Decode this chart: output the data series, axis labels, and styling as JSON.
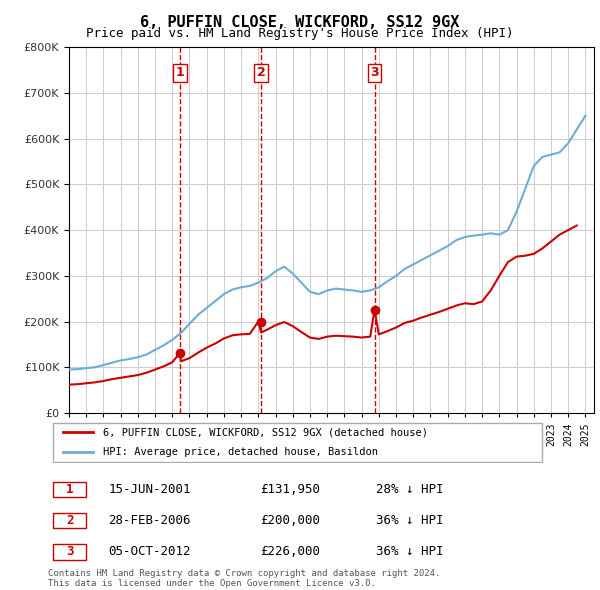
{
  "title": "6, PUFFIN CLOSE, WICKFORD, SS12 9GX",
  "subtitle": "Price paid vs. HM Land Registry's House Price Index (HPI)",
  "legend_red": "6, PUFFIN CLOSE, WICKFORD, SS12 9GX (detached house)",
  "legend_blue": "HPI: Average price, detached house, Basildon",
  "footer1": "Contains HM Land Registry data © Crown copyright and database right 2024.",
  "footer2": "This data is licensed under the Open Government Licence v3.0.",
  "transactions": [
    {
      "num": 1,
      "date": "15-JUN-2001",
      "price": "£131,950",
      "pct": "28% ↓ HPI",
      "year": 2001.46
    },
    {
      "num": 2,
      "date": "28-FEB-2006",
      "price": "£200,000",
      "pct": "36% ↓ HPI",
      "year": 2006.16
    },
    {
      "num": 3,
      "date": "05-OCT-2012",
      "price": "£226,000",
      "pct": "36% ↓ HPI",
      "year": 2012.75
    }
  ],
  "sale_prices": [
    131950,
    200000,
    226000
  ],
  "ylim": [
    0,
    800000
  ],
  "xlim_start": 1995.0,
  "xlim_end": 2025.5,
  "hpi_color": "#6baed6",
  "price_color": "#cc0000",
  "vline_color": "#cc0000",
  "grid_color": "#cccccc",
  "bg_color": "#ffffff",
  "hpi_x": [
    1995,
    1995.5,
    1996,
    1996.5,
    1997,
    1997.5,
    1998,
    1998.5,
    1999,
    1999.5,
    2000,
    2000.5,
    2001,
    2001.5,
    2002,
    2002.5,
    2003,
    2003.5,
    2004,
    2004.5,
    2005,
    2005.5,
    2006,
    2006.5,
    2007,
    2007.5,
    2008,
    2008.5,
    2009,
    2009.5,
    2010,
    2010.5,
    2011,
    2011.5,
    2012,
    2012.5,
    2013,
    2013.5,
    2014,
    2014.5,
    2015,
    2015.5,
    2016,
    2016.5,
    2017,
    2017.5,
    2018,
    2018.5,
    2019,
    2019.5,
    2020,
    2020.5,
    2021,
    2021.5,
    2022,
    2022.5,
    2023,
    2023.5,
    2024,
    2024.5,
    2025
  ],
  "hpi_y": [
    95000,
    96000,
    98000,
    100000,
    105000,
    110000,
    115000,
    118000,
    122000,
    128000,
    138000,
    148000,
    160000,
    175000,
    195000,
    215000,
    230000,
    245000,
    260000,
    270000,
    275000,
    278000,
    285000,
    295000,
    310000,
    320000,
    305000,
    285000,
    265000,
    260000,
    268000,
    272000,
    270000,
    268000,
    265000,
    268000,
    275000,
    288000,
    300000,
    315000,
    325000,
    335000,
    345000,
    355000,
    365000,
    378000,
    385000,
    388000,
    390000,
    393000,
    390000,
    400000,
    440000,
    490000,
    540000,
    560000,
    565000,
    570000,
    590000,
    620000,
    650000
  ],
  "red_x": [
    1995,
    1995.5,
    1996,
    1996.5,
    1997,
    1997.5,
    1998,
    1998.5,
    1999,
    1999.5,
    2000,
    2000.5,
    2001,
    2001.46,
    2001.5,
    2002,
    2002.5,
    2003,
    2003.5,
    2004,
    2004.5,
    2005,
    2005.5,
    2006,
    2006.16,
    2006.5,
    2007,
    2007.5,
    2008,
    2008.5,
    2009,
    2009.5,
    2010,
    2010.5,
    2011,
    2011.5,
    2012,
    2012.5,
    2012.75,
    2013,
    2013.5,
    2014,
    2014.5,
    2015,
    2015.5,
    2016,
    2016.5,
    2017,
    2017.5,
    2018,
    2018.5,
    2019,
    2019.5,
    2020,
    2020.5,
    2021,
    2021.5,
    2022,
    2022.5,
    2023,
    2023.5,
    2024,
    2024.5
  ],
  "red_y": [
    62000,
    63000,
    65000,
    67000,
    70000,
    74000,
    77000,
    80000,
    83000,
    88000,
    95000,
    102000,
    111000,
    131950,
    113000,
    120000,
    132000,
    143000,
    152000,
    163000,
    170000,
    172000,
    173000,
    200000,
    176000,
    182000,
    192000,
    199000,
    190000,
    177000,
    165000,
    162000,
    167000,
    169000,
    168000,
    167000,
    165000,
    167000,
    226000,
    172000,
    179000,
    187000,
    197000,
    202000,
    209000,
    215000,
    221000,
    228000,
    235000,
    240000,
    238000,
    244000,
    268000,
    300000,
    330000,
    342000,
    344000,
    348000,
    360000,
    375000,
    390000,
    400000,
    410000
  ]
}
